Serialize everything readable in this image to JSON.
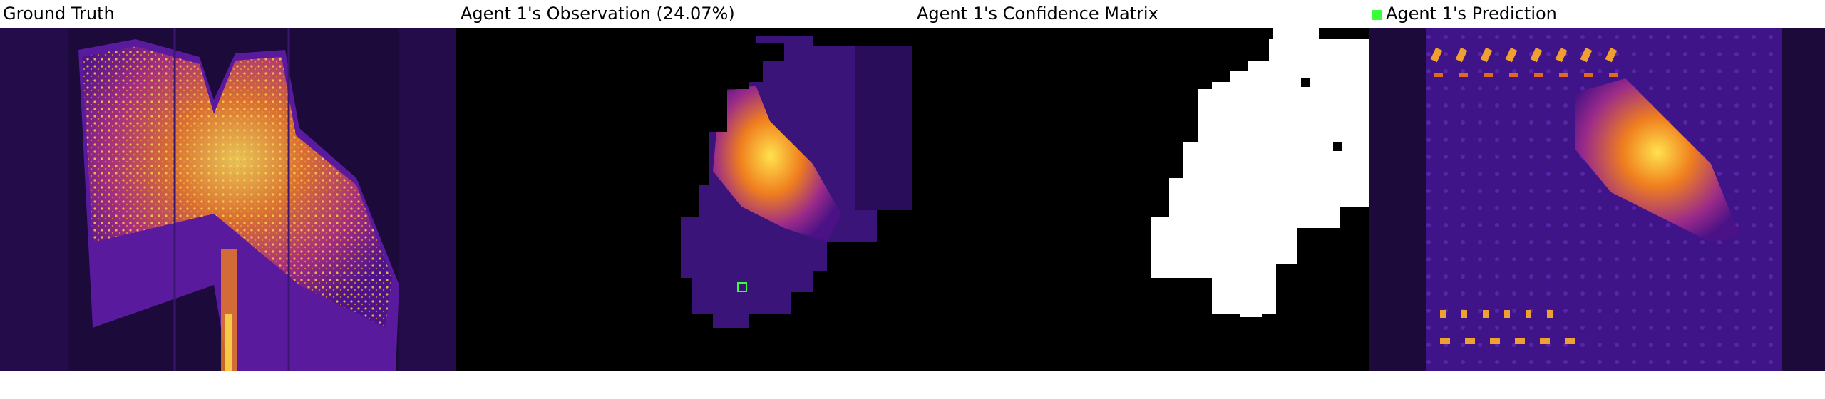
{
  "panels": {
    "ground_truth": {
      "title": "Ground Truth"
    },
    "observation": {
      "title": "Agent 1's Observation (24.07%)"
    },
    "confidence": {
      "title": "Agent 1's Confidence Matrix"
    },
    "prediction": {
      "title": "Agent 1's Prediction"
    }
  },
  "colors": {
    "background": "#ffffff",
    "heat_dark": "#1b0a3a",
    "heat_mid": "#5a1a9e",
    "heat_orange": "#f07f1e",
    "heat_yellow": "#ffe24d",
    "mask_black": "#000000",
    "mask_white": "#ffffff",
    "agent_marker": "#39ff39"
  },
  "icons": {
    "prediction_legend": "green-square-icon",
    "agent_marker": "agent-position-icon"
  }
}
